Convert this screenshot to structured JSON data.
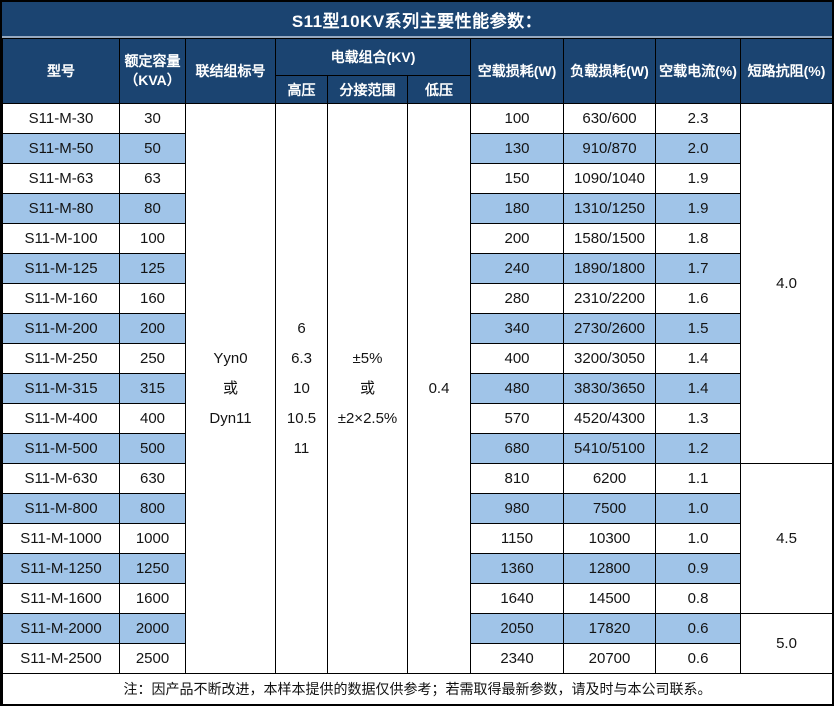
{
  "title": "S11型10KV系列主要性能参数：",
  "colors": {
    "header_bg": "#1b4471",
    "row_alt_bg": "#a0c4e8",
    "border": "#000000",
    "title_separator": "#96a9c0"
  },
  "header": {
    "model": "型号",
    "capacity_line1": "额定容量",
    "capacity_line2": "（KVA）",
    "connection": "联结组标号",
    "voltage_group": "电载组合(KV)",
    "hv": "高压",
    "tap_range": "分接范围",
    "lv": "低压",
    "no_load_loss": "空载损耗(W)",
    "load_loss": "负载损耗(W)",
    "no_load_current": "空载电流(%)",
    "impedance": "短路抗阻(%)"
  },
  "merged_cells": {
    "connection_lines": [
      "Yyn0",
      "或",
      "Dyn11"
    ],
    "hv_lines": [
      "6",
      "6.3",
      "10",
      "10.5",
      "11"
    ],
    "tap_lines": [
      "±5%",
      "或",
      "±2×2.5%"
    ],
    "lv_value": "0.4"
  },
  "impedance_groups": [
    {
      "value": "4.0",
      "span": 12
    },
    {
      "value": "4.5",
      "span": 5
    },
    {
      "value": "5.0",
      "span": 2
    }
  ],
  "chart_data": {
    "type": "table",
    "title": "S11型10KV系列主要性能参数",
    "columns": [
      "型号",
      "额定容量（KVA）",
      "空载损耗(W)",
      "负载损耗(W)",
      "空载电流(%)"
    ],
    "rows_note": "联结组标号=Yyn0或Dyn11; 高压=6/6.3/10/10.5/11 KV; 分接范围=±5%或±2×2.5%; 低压=0.4 KV"
  },
  "rows": [
    {
      "model": "S11-M-30",
      "kva": "30",
      "no_load": "100",
      "load": "630/600",
      "current": "2.3"
    },
    {
      "model": "S11-M-50",
      "kva": "50",
      "no_load": "130",
      "load": "910/870",
      "current": "2.0"
    },
    {
      "model": "S11-M-63",
      "kva": "63",
      "no_load": "150",
      "load": "1090/1040",
      "current": "1.9"
    },
    {
      "model": "S11-M-80",
      "kva": "80",
      "no_load": "180",
      "load": "1310/1250",
      "current": "1.9"
    },
    {
      "model": "S11-M-100",
      "kva": "100",
      "no_load": "200",
      "load": "1580/1500",
      "current": "1.8"
    },
    {
      "model": "S11-M-125",
      "kva": "125",
      "no_load": "240",
      "load": "1890/1800",
      "current": "1.7"
    },
    {
      "model": "S11-M-160",
      "kva": "160",
      "no_load": "280",
      "load": "2310/2200",
      "current": "1.6"
    },
    {
      "model": "S11-M-200",
      "kva": "200",
      "no_load": "340",
      "load": "2730/2600",
      "current": "1.5"
    },
    {
      "model": "S11-M-250",
      "kva": "250",
      "no_load": "400",
      "load": "3200/3050",
      "current": "1.4"
    },
    {
      "model": "S11-M-315",
      "kva": "315",
      "no_load": "480",
      "load": "3830/3650",
      "current": "1.4"
    },
    {
      "model": "S11-M-400",
      "kva": "400",
      "no_load": "570",
      "load": "4520/4300",
      "current": "1.3"
    },
    {
      "model": "S11-M-500",
      "kva": "500",
      "no_load": "680",
      "load": "5410/5100",
      "current": "1.2"
    },
    {
      "model": "S11-M-630",
      "kva": "630",
      "no_load": "810",
      "load": "6200",
      "current": "1.1"
    },
    {
      "model": "S11-M-800",
      "kva": "800",
      "no_load": "980",
      "load": "7500",
      "current": "1.0"
    },
    {
      "model": "S11-M-1000",
      "kva": "1000",
      "no_load": "1150",
      "load": "10300",
      "current": "1.0"
    },
    {
      "model": "S11-M-1250",
      "kva": "1250",
      "no_load": "1360",
      "load": "12800",
      "current": "0.9"
    },
    {
      "model": "S11-M-1600",
      "kva": "1600",
      "no_load": "1640",
      "load": "14500",
      "current": "0.8"
    },
    {
      "model": "S11-M-2000",
      "kva": "2000",
      "no_load": "2050",
      "load": "17820",
      "current": "0.6"
    },
    {
      "model": "S11-M-2500",
      "kva": "2500",
      "no_load": "2340",
      "load": "20700",
      "current": "0.6"
    }
  ],
  "footnote": "注：因产品不断改进，本样本提供的数据仅供参考；若需取得最新参数，请及时与本公司联系。"
}
